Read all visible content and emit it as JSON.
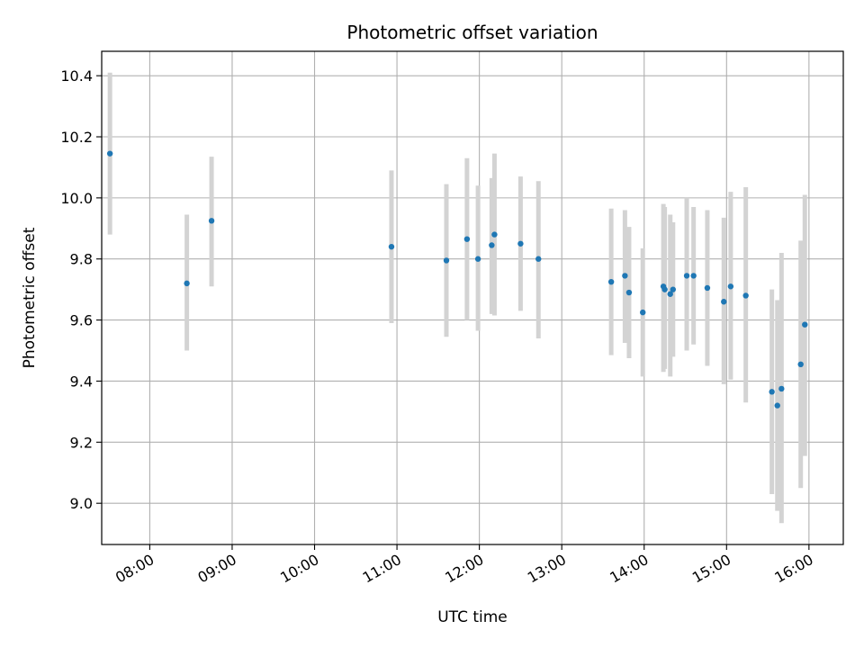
{
  "chart_data": {
    "type": "scatter",
    "title": "Photometric offset variation",
    "xlabel": "UTC time",
    "ylabel": "Photometric offset",
    "x_is_time": true,
    "xlim": [
      "07:25",
      "16:25"
    ],
    "ylim": [
      8.865,
      10.48
    ],
    "grid": true,
    "x_ticks": [
      "08:00",
      "09:00",
      "10:00",
      "11:00",
      "12:00",
      "13:00",
      "14:00",
      "15:00",
      "16:00"
    ],
    "y_ticks": [
      "9.0",
      "9.2",
      "9.4",
      "9.6",
      "9.8",
      "10.0",
      "10.2",
      "10.4"
    ],
    "colors": {
      "point": "#1f77b4",
      "errorbar": "#d3d3d3",
      "grid": "#b0b0b0"
    },
    "series": [
      {
        "points": [
          {
            "x": "07:31",
            "y": 10.145,
            "yerr": [
              9.88,
              10.41
            ]
          },
          {
            "x": "08:27",
            "y": 9.72,
            "yerr": [
              9.5,
              9.945
            ]
          },
          {
            "x": "08:45",
            "y": 9.925,
            "yerr": [
              9.71,
              10.135
            ]
          },
          {
            "x": "10:56",
            "y": 9.84,
            "yerr": [
              9.59,
              10.09
            ]
          },
          {
            "x": "11:36",
            "y": 9.795,
            "yerr": [
              9.545,
              10.045
            ]
          },
          {
            "x": "11:51",
            "y": 9.865,
            "yerr": [
              9.6,
              10.13
            ]
          },
          {
            "x": "11:59",
            "y": 9.8,
            "yerr": [
              9.565,
              10.04
            ]
          },
          {
            "x": "12:09",
            "y": 9.845,
            "yerr": [
              9.62,
              10.065
            ]
          },
          {
            "x": "12:11",
            "y": 9.88,
            "yerr": [
              9.615,
              10.145
            ]
          },
          {
            "x": "12:30",
            "y": 9.85,
            "yerr": [
              9.63,
              10.07
            ]
          },
          {
            "x": "12:43",
            "y": 9.8,
            "yerr": [
              9.54,
              10.055
            ]
          },
          {
            "x": "13:36",
            "y": 9.725,
            "yerr": [
              9.485,
              9.965
            ]
          },
          {
            "x": "13:46",
            "y": 9.745,
            "yerr": [
              9.525,
              9.96
            ]
          },
          {
            "x": "13:49",
            "y": 9.69,
            "yerr": [
              9.475,
              9.905
            ]
          },
          {
            "x": "13:59",
            "y": 9.625,
            "yerr": [
              9.415,
              9.835
            ]
          },
          {
            "x": "14:14",
            "y": 9.71,
            "yerr": [
              9.43,
              9.98
            ]
          },
          {
            "x": "14:15",
            "y": 9.7,
            "yerr": [
              9.44,
              9.97
            ]
          },
          {
            "x": "14:19",
            "y": 9.685,
            "yerr": [
              9.415,
              9.945
            ]
          },
          {
            "x": "14:21",
            "y": 9.7,
            "yerr": [
              9.48,
              9.92
            ]
          },
          {
            "x": "14:31",
            "y": 9.745,
            "yerr": [
              9.5,
              10.0
            ]
          },
          {
            "x": "14:36",
            "y": 9.745,
            "yerr": [
              9.52,
              9.97
            ]
          },
          {
            "x": "14:46",
            "y": 9.705,
            "yerr": [
              9.45,
              9.96
            ]
          },
          {
            "x": "14:58",
            "y": 9.66,
            "yerr": [
              9.39,
              9.935
            ]
          },
          {
            "x": "15:03",
            "y": 9.71,
            "yerr": [
              9.405,
              10.02
            ]
          },
          {
            "x": "15:14",
            "y": 9.68,
            "yerr": [
              9.33,
              10.035
            ]
          },
          {
            "x": "15:33",
            "y": 9.365,
            "yerr": [
              9.03,
              9.7
            ]
          },
          {
            "x": "15:37",
            "y": 9.32,
            "yerr": [
              8.975,
              9.665
            ]
          },
          {
            "x": "15:40",
            "y": 9.375,
            "yerr": [
              8.935,
              9.82
            ]
          },
          {
            "x": "15:54",
            "y": 9.455,
            "yerr": [
              9.05,
              9.86
            ]
          },
          {
            "x": "15:57",
            "y": 9.585,
            "yerr": [
              9.155,
              10.01
            ]
          }
        ]
      }
    ]
  }
}
